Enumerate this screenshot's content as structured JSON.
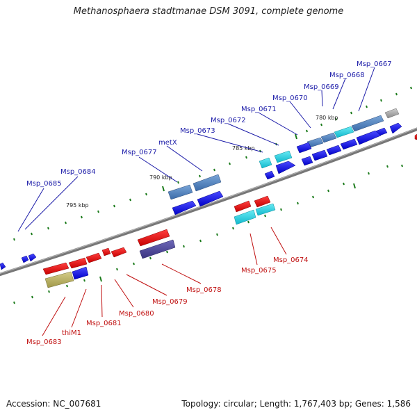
{
  "title": "Methanosphaera stadtmanae DSM 3091, complete genome",
  "footer": {
    "accession": "Accession: NC_007681",
    "summary": "Topology: circular; Length: 1,767,403 bp; Genes: 1,586"
  },
  "colors": {
    "backbone": "#7a7a7a",
    "forward_gene": "#0000e6",
    "reverse_gene": "#e60000",
    "steelblue_gene": "#4a7cb8",
    "cyan_gene": "#17d0e0",
    "olive_gene": "#b8b060",
    "slate_gene": "#4e4898",
    "grey_gene": "#a8a8a8",
    "blue_label": "#1a1aa8",
    "red_label": "#c01010",
    "tick": "#1a7a1a"
  },
  "scale_labels": [
    "780 kbp",
    "785 kbp",
    "790 kbp",
    "795 kbp"
  ],
  "forward_labels": [
    "Msp_0667",
    "Msp_0668",
    "Msp_0669",
    "Msp_0670",
    "Msp_0671",
    "Msp_0672",
    "Msp_0673",
    "metX",
    "Msp_0677",
    "Msp_0684",
    "Msp_0685"
  ],
  "reverse_labels": [
    "Msp_0674",
    "Msp_0675",
    "Msp_0678",
    "Msp_0679",
    "Msp_0680",
    "Msp_0681",
    "thiM1",
    "Msp_0683"
  ]
}
